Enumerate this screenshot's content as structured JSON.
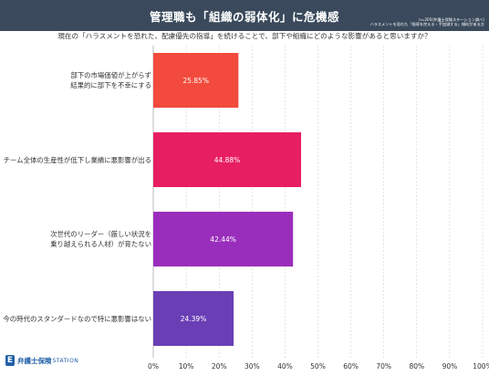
{
  "banner": {
    "title": "管理職も「組織の弱体化」に危機感"
  },
  "source": {
    "line1": "n=205(弁護士保険ステーション調べ)",
    "line2": "ハラスメントを恐れた「指導を控える・手加減する」傾向がある方"
  },
  "question": "現在の「ハラスメントを恐れた、配慮優先の指導」を続けることで、部下や組織にどのような影響があると思いますか？",
  "logo": {
    "mark": "E",
    "text": "弁護士保険",
    "eng": "STATION"
  },
  "colors": {
    "banner": "#3a4a5c",
    "bar1": "#f24a3c",
    "bar2": "#e81e62",
    "bar3": "#9a2ebc",
    "bar4": "#6a3fb6"
  },
  "chart_data": {
    "type": "bar",
    "orientation": "horizontal",
    "categories": [
      [
        "部下の市場価値が上がらず",
        "結果的に部下を不幸にする"
      ],
      [
        "チーム全体の生産性が低下し業績に悪影響が出る"
      ],
      [
        "次世代のリーダー（厳しい状況を",
        "乗り越えられる人材）が育たない"
      ],
      [
        "今の時代のスタンダードなので特に悪影響はない"
      ]
    ],
    "values": [
      25.85,
      44.88,
      42.44,
      24.39
    ],
    "value_labels": [
      "25.85%",
      "44.88%",
      "42.44%",
      "24.39%"
    ],
    "xlim": [
      0,
      100
    ],
    "xticks": [
      "0%",
      "10%",
      "20%",
      "30%",
      "40%",
      "50%",
      "60%",
      "70%",
      "80%",
      "90%",
      "100%"
    ],
    "grid": true
  }
}
